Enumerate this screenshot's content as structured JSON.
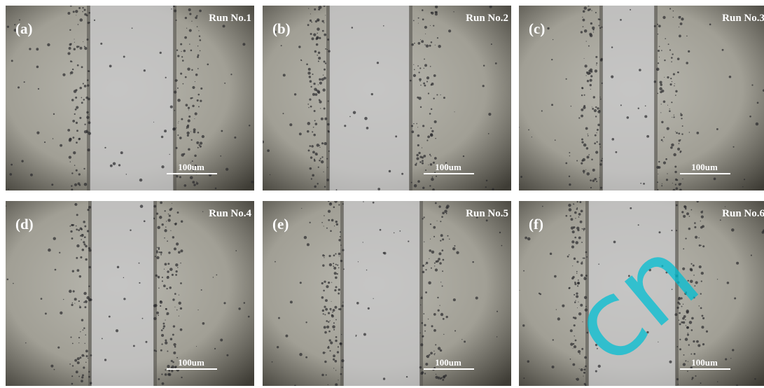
{
  "panels": [
    {
      "label": "(a)",
      "title": "Run No.1",
      "scale": "100um"
    },
    {
      "label": "(b)",
      "title": "Run No.2",
      "scale": "100um"
    },
    {
      "label": "(c)",
      "title": "Run No.3",
      "scale": "100um"
    },
    {
      "label": "(d)",
      "title": "Run No.4",
      "scale": "100um"
    },
    {
      "label": "(e)",
      "title": "Run No.5",
      "scale": "100um"
    },
    {
      "label": "(f)",
      "title": "Run No.6",
      "scale": "100um"
    }
  ],
  "watermark": "cn"
}
